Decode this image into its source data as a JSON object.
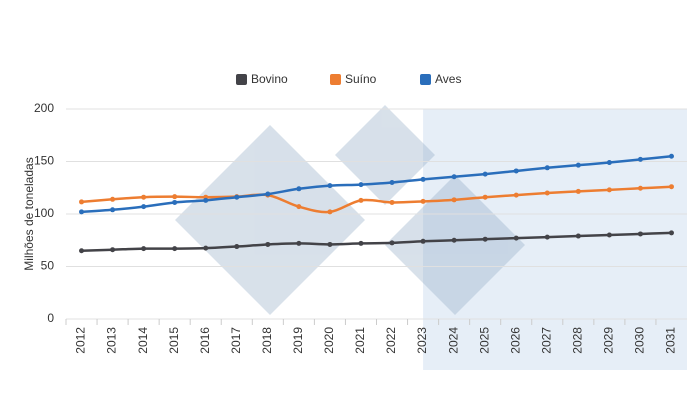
{
  "chart_data": {
    "type": "line",
    "y_label": "Milhões de toneladas",
    "categories": [
      "2012",
      "2013",
      "2014",
      "2015",
      "2016",
      "2017",
      "2018",
      "2019",
      "2020",
      "2021",
      "2022",
      "2023",
      "2024",
      "2025",
      "2026",
      "2027",
      "2028",
      "2029",
      "2030",
      "2031"
    ],
    "series": [
      {
        "name": "Bovino",
        "color": "#434348",
        "values": [
          65,
          66,
          67,
          67,
          67.5,
          69,
          71,
          72,
          71,
          72,
          72.5,
          74,
          75,
          76,
          77,
          78,
          79,
          80,
          81,
          82
        ]
      },
      {
        "name": "Suíno",
        "color": "#ed7d31",
        "values": [
          111.5,
          114,
          116,
          116.5,
          116,
          116.5,
          118,
          107,
          102,
          113,
          111,
          112,
          113.5,
          116,
          118,
          120,
          121.5,
          123,
          124.5,
          126
        ]
      },
      {
        "name": "Aves",
        "color": "#2a6ebb",
        "values": [
          102,
          104,
          107,
          111,
          113,
          116,
          119,
          124,
          127,
          128,
          130,
          133,
          135.5,
          138,
          141,
          144,
          146.5,
          149,
          152,
          155
        ]
      }
    ],
    "ylim": [
      0,
      200
    ],
    "yticks": [
      0,
      50,
      100,
      150,
      200
    ],
    "grid": true
  }
}
